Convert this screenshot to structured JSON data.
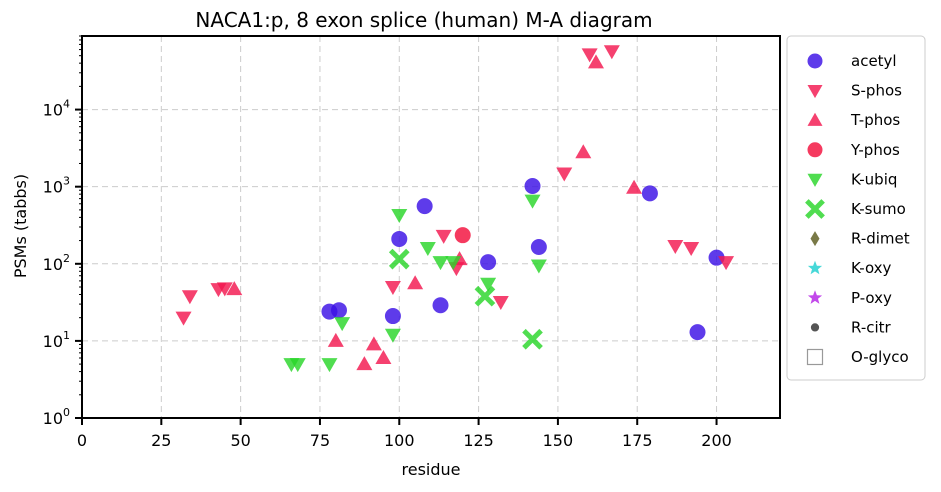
{
  "chart_data": {
    "type": "scatter",
    "title": "NACA1:p, 8 exon splice (human) M-A diagram",
    "xlabel": "residue",
    "ylabel": "PSMs (tabbs)",
    "xlim": [
      0,
      220
    ],
    "ylim": [
      1,
      90000
    ],
    "yscale": "log",
    "grid": true,
    "legend_position": "outside-right",
    "x_ticks": [
      0,
      25,
      50,
      75,
      100,
      125,
      150,
      175,
      200
    ],
    "x_tick_labels": [
      "0",
      "25",
      "50",
      "75",
      "100",
      "125",
      "150",
      "175",
      "200"
    ],
    "y_ticks": [
      1,
      10,
      100,
      1000,
      10000
    ],
    "y_tick_labels": [
      {
        "base": "10",
        "exp": "0"
      },
      {
        "base": "10",
        "exp": "1"
      },
      {
        "base": "10",
        "exp": "2"
      },
      {
        "base": "10",
        "exp": "3"
      },
      {
        "base": "10",
        "exp": "4"
      }
    ],
    "series": [
      {
        "name": "acetyl",
        "marker": "circle",
        "color": "#3a10e5",
        "points": [
          [
            78,
            24
          ],
          [
            81,
            25
          ],
          [
            98,
            21
          ],
          [
            100,
            210
          ],
          [
            108,
            560
          ],
          [
            113,
            29
          ],
          [
            128,
            105
          ],
          [
            142,
            1020
          ],
          [
            144,
            165
          ],
          [
            179,
            820
          ],
          [
            194,
            13
          ],
          [
            200,
            120
          ]
        ]
      },
      {
        "name": "S-phos",
        "marker": "triangle-down",
        "color": "#f3174f",
        "points": [
          [
            32,
            20
          ],
          [
            34,
            38
          ],
          [
            43,
            47
          ],
          [
            45,
            48
          ],
          [
            98,
            50
          ],
          [
            114,
            230
          ],
          [
            118,
            88
          ],
          [
            132,
            32
          ],
          [
            152,
            1480
          ],
          [
            160,
            52000
          ],
          [
            167,
            57000
          ],
          [
            187,
            170
          ],
          [
            192,
            160
          ],
          [
            203,
            105
          ]
        ]
      },
      {
        "name": "T-phos",
        "marker": "triangle-up",
        "color": "#f3174f",
        "points": [
          [
            48,
            47
          ],
          [
            80,
            10
          ],
          [
            89,
            5
          ],
          [
            92,
            9
          ],
          [
            95,
            6
          ],
          [
            105,
            56
          ],
          [
            119,
            115
          ],
          [
            158,
            2800
          ],
          [
            162,
            41000
          ],
          [
            174,
            970
          ]
        ]
      },
      {
        "name": "Y-phos",
        "marker": "circle",
        "color": "#f30f3c",
        "points": [
          [
            120,
            235
          ]
        ]
      },
      {
        "name": "K-ubiq",
        "marker": "triangle-down",
        "color": "#2ad52a",
        "points": [
          [
            66,
            5
          ],
          [
            68,
            5
          ],
          [
            78,
            5
          ],
          [
            82,
            17
          ],
          [
            98,
            12
          ],
          [
            100,
            430
          ],
          [
            109,
            160
          ],
          [
            113,
            105
          ],
          [
            117,
            105
          ],
          [
            128,
            55
          ],
          [
            142,
            660
          ],
          [
            144,
            95
          ]
        ]
      },
      {
        "name": "K-sumo",
        "marker": "x",
        "color": "#2ad52a",
        "points": [
          [
            100,
            115
          ],
          [
            127,
            38
          ],
          [
            142,
            10.5
          ]
        ]
      },
      {
        "name": "R-dimet",
        "marker": "diamond",
        "color": "#5c5c1f",
        "points": []
      },
      {
        "name": "K-oxy",
        "marker": "star",
        "color": "#1fd0d0",
        "points": []
      },
      {
        "name": "P-oxy",
        "marker": "star",
        "color": "#b520e5",
        "points": []
      },
      {
        "name": "R-citr",
        "marker": "dot",
        "color": "#555555",
        "points": []
      },
      {
        "name": "O-glyco",
        "marker": "square-open",
        "color": "#999999",
        "points": []
      }
    ]
  }
}
